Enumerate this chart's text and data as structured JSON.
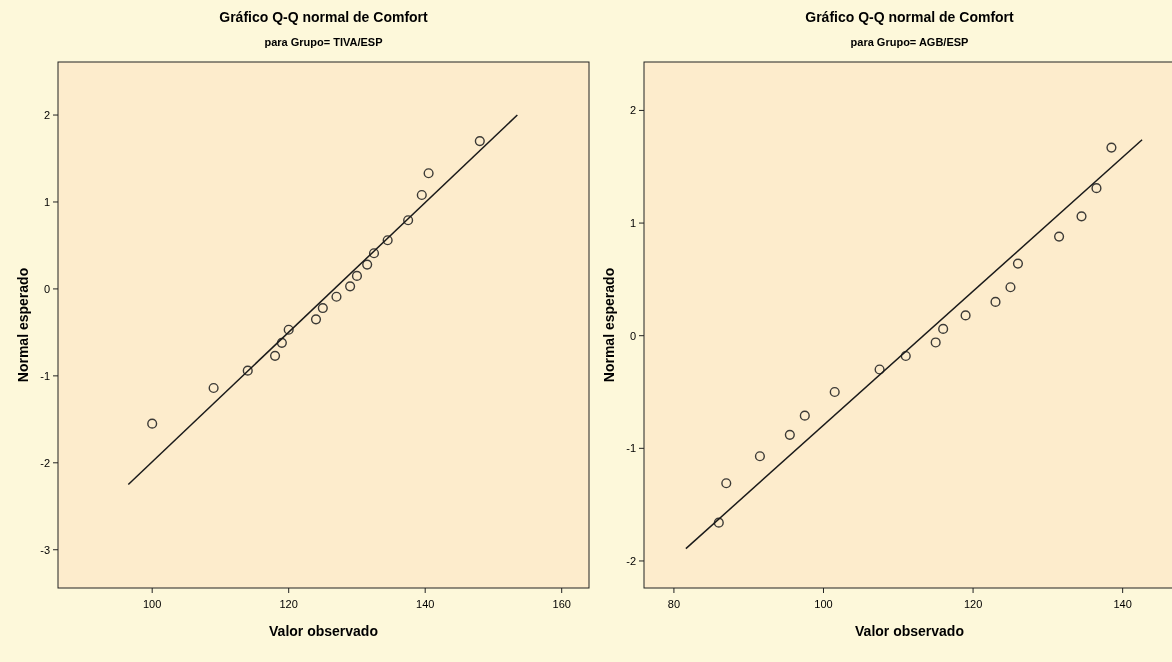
{
  "chart_data": [
    {
      "type": "scatter",
      "title": "Gráfico Q-Q normal de Comfort",
      "subtitle": "para Grupo= TIVA/ESP",
      "xlabel": "Valor observado",
      "ylabel": "Normal esperado",
      "xlim": [
        86.2,
        164
      ],
      "ylim": [
        -3.44,
        2.61
      ],
      "xticks": [
        100,
        120,
        140,
        160
      ],
      "yticks": [
        -3,
        -2,
        -1,
        0,
        1,
        2
      ],
      "grid": false,
      "series": [
        {
          "marker": "circle",
          "color": "#3c3a36",
          "x": [
            100,
            109,
            114,
            118,
            119,
            120,
            124,
            125,
            127,
            129,
            130,
            131.5,
            132.5,
            134.5,
            137.5,
            139.5,
            140.5,
            148
          ],
          "values": [
            -1.55,
            -1.14,
            -0.94,
            -0.77,
            -0.62,
            -0.47,
            -0.35,
            -0.22,
            -0.09,
            0.03,
            0.15,
            0.28,
            0.41,
            0.56,
            0.79,
            1.08,
            1.33,
            1.7
          ]
        },
        {
          "type": "line",
          "color": "#1a1a1a",
          "x": [
            96.5,
            153.5
          ],
          "values": [
            -2.25,
            2.0
          ]
        }
      ]
    },
    {
      "type": "scatter",
      "title": "Gráfico Q-Q normal de Comfort",
      "subtitle": "para Grupo= AGB/ESP",
      "xlabel": "Valor observado",
      "ylabel": "Normal esperado",
      "xlim": [
        76,
        147
      ],
      "ylim": [
        -2.24,
        2.43
      ],
      "xticks": [
        80,
        100,
        120,
        140
      ],
      "yticks": [
        -2,
        -1,
        0,
        1,
        2
      ],
      "grid": false,
      "series": [
        {
          "marker": "circle",
          "color": "#3c3a36",
          "x": [
            86,
            87,
            91.5,
            95.5,
            97.5,
            101.5,
            107.5,
            111,
            115,
            116,
            119,
            123,
            125,
            126,
            131.5,
            134.5,
            136.5,
            138.5
          ],
          "values": [
            -1.66,
            -1.31,
            -1.07,
            -0.88,
            -0.71,
            -0.5,
            -0.3,
            -0.18,
            -0.06,
            0.06,
            0.18,
            0.3,
            0.43,
            0.64,
            0.88,
            1.06,
            1.31,
            1.67
          ]
        },
        {
          "type": "line",
          "color": "#1a1a1a",
          "x": [
            81.6,
            142.6
          ],
          "values": [
            -1.89,
            1.74
          ]
        }
      ]
    }
  ]
}
